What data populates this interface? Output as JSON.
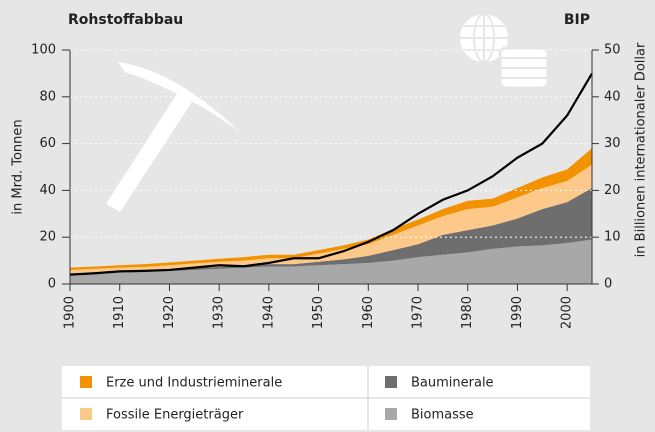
{
  "chart_data": {
    "type": "stacked_area_line",
    "title": "Rohstoffabbau",
    "ylabel": "in Mrd. Tonnen",
    "y2label": "in Billionen internationaler Dollar",
    "x": [
      1900,
      1905,
      1910,
      1915,
      1920,
      1925,
      1930,
      1935,
      1940,
      1945,
      1950,
      1955,
      1960,
      1965,
      1970,
      1975,
      1980,
      1985,
      1990,
      1995,
      2000,
      2005
    ],
    "xlim": [
      1900,
      2005
    ],
    "xticks": [
      1900,
      1910,
      1920,
      1930,
      1940,
      1950,
      1960,
      1970,
      1980,
      1990,
      2000
    ],
    "ylim": [
      0,
      100
    ],
    "yticks": [
      0,
      20,
      40,
      60,
      80,
      100
    ],
    "y2lim": [
      0,
      50
    ],
    "y2ticks": [
      0,
      10,
      20,
      30,
      40,
      50
    ],
    "grid": true,
    "series": [
      {
        "name": "Biomasse",
        "color": "#a8a8a8",
        "values": [
          4,
          4.5,
          5,
          5.2,
          5.5,
          6,
          6.5,
          7,
          7.5,
          7.5,
          8,
          8.5,
          9,
          10,
          11.5,
          12.5,
          13.5,
          15,
          16,
          16.5,
          17.5,
          19
        ]
      },
      {
        "name": "Bauminerale",
        "color": "#6e6e6e",
        "values": [
          0.5,
          0.5,
          0.5,
          0.6,
          0.7,
          0.8,
          0.8,
          0.8,
          1,
          1,
          1.5,
          2,
          3,
          4.5,
          5.5,
          8.5,
          9.5,
          10,
          12,
          15.5,
          17.5,
          22
        ]
      },
      {
        "name": "Fossile Energieträger",
        "color": "#fdc98a",
        "values": [
          1.5,
          1.5,
          1.5,
          1.5,
          1.8,
          2,
          2.2,
          2.2,
          2.5,
          2.5,
          3.5,
          4.5,
          5,
          6.5,
          8,
          8,
          9,
          8,
          9,
          9,
          9,
          10
        ]
      },
      {
        "name": "Erze und Industrieminerale",
        "color": "#f39200",
        "values": [
          1,
          1,
          1,
          1.2,
          1.2,
          1.2,
          1.3,
          1.5,
          1.5,
          1.5,
          1.5,
          1.5,
          2,
          2.5,
          2.5,
          3,
          3.5,
          3.5,
          4,
          4.5,
          5,
          7
        ]
      },
      {
        "name": "BIP",
        "color": "#000000",
        "axis": "y2",
        "values": [
          2,
          2.3,
          2.7,
          2.8,
          3,
          3.5,
          4,
          3.8,
          4.5,
          5.5,
          5.5,
          7,
          9,
          11.5,
          15,
          18,
          20,
          23,
          27,
          30,
          36,
          45
        ]
      }
    ]
  }
}
